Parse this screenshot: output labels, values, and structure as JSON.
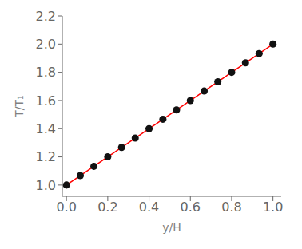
{
  "chart_data": {
    "type": "line",
    "xlabel": "y/H",
    "ylabel": "T/T₁",
    "series": [
      {
        "type": "line",
        "color": "#FF0000",
        "x": [
          0.0,
          1.0
        ],
        "values": [
          1.0,
          2.0
        ]
      },
      {
        "type": "scatter",
        "marker": "circle",
        "color": "#111111",
        "x": [
          0.0,
          0.067,
          0.133,
          0.2,
          0.267,
          0.333,
          0.4,
          0.467,
          0.533,
          0.6,
          0.667,
          0.733,
          0.8,
          0.867,
          0.933,
          1.0
        ],
        "values": [
          1.0,
          1.067,
          1.133,
          1.2,
          1.267,
          1.333,
          1.4,
          1.467,
          1.533,
          1.6,
          1.667,
          1.733,
          1.8,
          1.867,
          1.933,
          2.0
        ]
      }
    ],
    "xlim": [
      -0.02,
      1.04
    ],
    "ylim": [
      0.92,
      2.2
    ],
    "xticks": [
      {
        "value": 0,
        "label": "0.0"
      },
      0.2,
      0.4,
      0.6,
      0.8,
      {
        "value": 1,
        "label": "1.0"
      }
    ],
    "yticks": [
      {
        "value": 1,
        "label": "1.0"
      },
      1.2,
      1.4,
      1.6,
      1.8,
      {
        "value": 2,
        "label": "2.0"
      },
      2.2
    ],
    "grid": false
  }
}
